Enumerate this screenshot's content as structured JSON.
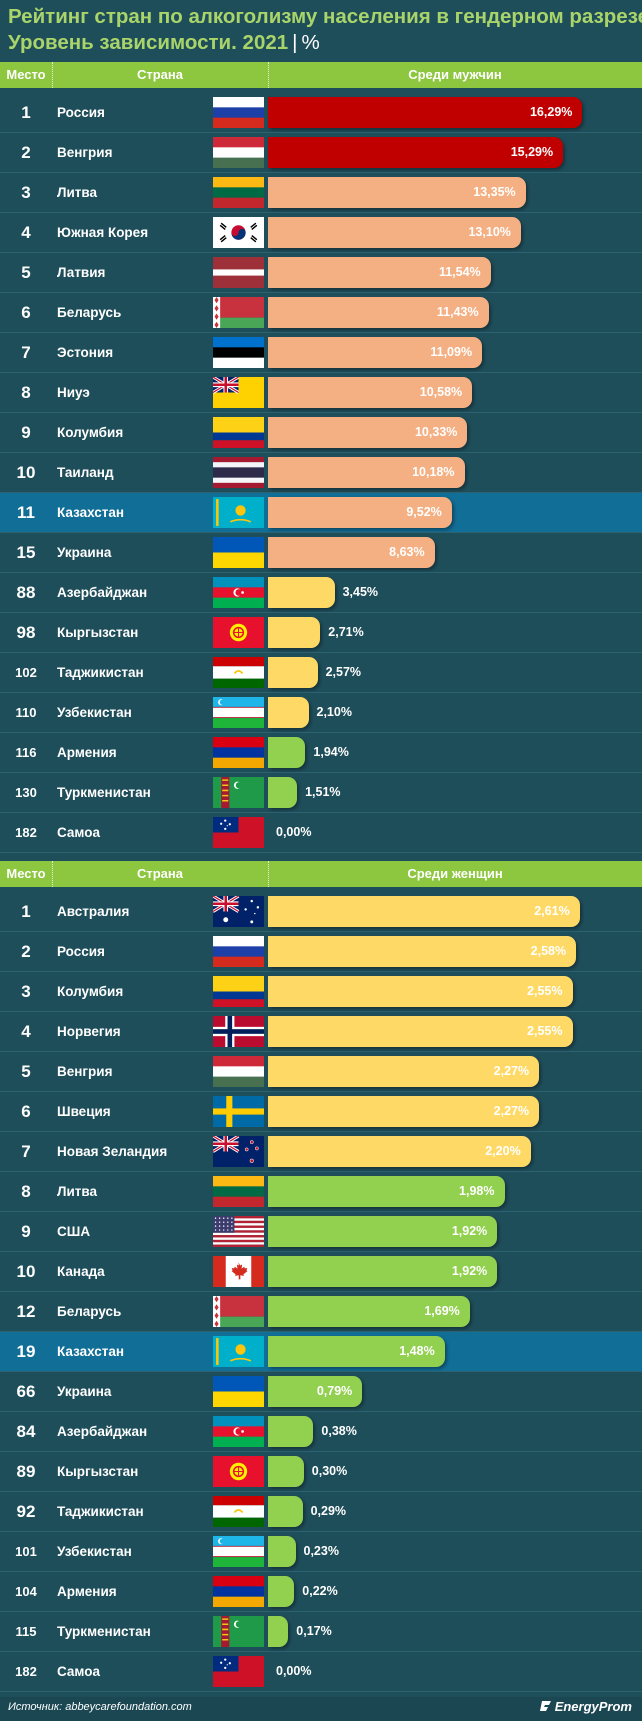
{
  "title": {
    "line1": "Рейтинг стран по алкоголизму населения в гендерном разрезе.",
    "line2": "Уровень зависимости. 2021",
    "separator": "|",
    "unit": "%"
  },
  "colors": {
    "red": "#c00000",
    "salmon": "#f4b083",
    "yellow": "#ffd966",
    "green": "#92d050",
    "header": "#8dc63f",
    "highlight_row": "#116e96",
    "background": "#1f4e5b"
  },
  "chart_data": [
    {
      "type": "bar",
      "orientation": "horizontal",
      "header": {
        "place": "Место",
        "country": "Страна",
        "value": "Среди мужчин"
      },
      "xlim": [
        0,
        17.2
      ],
      "rows": [
        {
          "place": "1",
          "country": "Россия",
          "flag": "flag-russia",
          "value": 16.29,
          "label": "16,29%",
          "color": "red",
          "highlight": false
        },
        {
          "place": "2",
          "country": "Венгрия",
          "flag": "flag-hungary",
          "value": 15.29,
          "label": "15,29%",
          "color": "red",
          "highlight": false
        },
        {
          "place": "3",
          "country": "Литва",
          "flag": "flag-lithuania",
          "value": 13.35,
          "label": "13,35%",
          "color": "salmon",
          "highlight": false
        },
        {
          "place": "4",
          "country": "Южная Корея",
          "flag": "flag-south-korea",
          "value": 13.1,
          "label": "13,10%",
          "color": "salmon",
          "highlight": false
        },
        {
          "place": "5",
          "country": "Латвия",
          "flag": "flag-latvia",
          "value": 11.54,
          "label": "11,54%",
          "color": "salmon",
          "highlight": false
        },
        {
          "place": "6",
          "country": "Беларусь",
          "flag": "flag-belarus",
          "value": 11.43,
          "label": "11,43%",
          "color": "salmon",
          "highlight": false
        },
        {
          "place": "7",
          "country": "Эстония",
          "flag": "flag-estonia",
          "value": 11.09,
          "label": "11,09%",
          "color": "salmon",
          "highlight": false
        },
        {
          "place": "8",
          "country": "Ниуэ",
          "flag": "flag-niue",
          "value": 10.58,
          "label": "10,58%",
          "color": "salmon",
          "highlight": false
        },
        {
          "place": "9",
          "country": "Колумбия",
          "flag": "flag-colombia",
          "value": 10.33,
          "label": "10,33%",
          "color": "salmon",
          "highlight": false
        },
        {
          "place": "10",
          "country": "Таиланд",
          "flag": "flag-thailand",
          "value": 10.18,
          "label": "10,18%",
          "color": "salmon",
          "highlight": false
        },
        {
          "place": "11",
          "country": "Казахстан",
          "flag": "flag-kazakhstan",
          "value": 9.52,
          "label": "9,52%",
          "color": "salmon",
          "highlight": true
        },
        {
          "place": "15",
          "country": "Украина",
          "flag": "flag-ukraine",
          "value": 8.63,
          "label": "8,63%",
          "color": "salmon",
          "highlight": false
        },
        {
          "place": "88",
          "country": "Азербайджан",
          "flag": "flag-azerbaijan",
          "value": 3.45,
          "label": "3,45%",
          "color": "yellow",
          "highlight": false
        },
        {
          "place": "98",
          "country": "Кыргызстан",
          "flag": "flag-kyrgyzstan",
          "value": 2.71,
          "label": "2,71%",
          "color": "yellow",
          "highlight": false
        },
        {
          "place": "102",
          "country": "Таджикистан",
          "flag": "flag-tajikistan",
          "value": 2.57,
          "label": "2,57%",
          "color": "yellow",
          "highlight": false
        },
        {
          "place": "110",
          "country": "Узбекистан",
          "flag": "flag-uzbekistan",
          "value": 2.1,
          "label": "2,10%",
          "color": "yellow",
          "highlight": false
        },
        {
          "place": "116",
          "country": "Армения",
          "flag": "flag-armenia",
          "value": 1.94,
          "label": "1,94%",
          "color": "green",
          "highlight": false
        },
        {
          "place": "130",
          "country": "Туркменистан",
          "flag": "flag-turkmenistan",
          "value": 1.51,
          "label": "1,51%",
          "color": "green",
          "highlight": false
        },
        {
          "place": "182",
          "country": "Самоа",
          "flag": "flag-samoa",
          "value": 0.0,
          "label": "0,00%",
          "color": "green",
          "highlight": false
        }
      ]
    },
    {
      "type": "bar",
      "orientation": "horizontal",
      "header": {
        "place": "Место",
        "country": "Страна",
        "value": "Среди женщин"
      },
      "xlim": [
        0,
        2.78
      ],
      "rows": [
        {
          "place": "1",
          "country": "Австралия",
          "flag": "flag-australia",
          "value": 2.61,
          "label": "2,61%",
          "color": "yellow",
          "highlight": false
        },
        {
          "place": "2",
          "country": "Россия",
          "flag": "flag-russia",
          "value": 2.58,
          "label": "2,58%",
          "color": "yellow",
          "highlight": false
        },
        {
          "place": "3",
          "country": "Колумбия",
          "flag": "flag-colombia",
          "value": 2.55,
          "label": "2,55%",
          "color": "yellow",
          "highlight": false
        },
        {
          "place": "4",
          "country": "Норвегия",
          "flag": "flag-norway",
          "value": 2.55,
          "label": "2,55%",
          "color": "yellow",
          "highlight": false
        },
        {
          "place": "5",
          "country": "Венгрия",
          "flag": "flag-hungary",
          "value": 2.27,
          "label": "2,27%",
          "color": "yellow",
          "highlight": false
        },
        {
          "place": "6",
          "country": "Швеция",
          "flag": "flag-sweden",
          "value": 2.27,
          "label": "2,27%",
          "color": "yellow",
          "highlight": false
        },
        {
          "place": "7",
          "country": "Новая Зеландия",
          "flag": "flag-new-zealand",
          "value": 2.2,
          "label": "2,20%",
          "color": "yellow",
          "highlight": false
        },
        {
          "place": "8",
          "country": "Литва",
          "flag": "flag-lithuania",
          "value": 1.98,
          "label": "1,98%",
          "color": "green",
          "highlight": false
        },
        {
          "place": "9",
          "country": "США",
          "flag": "flag-usa",
          "value": 1.92,
          "label": "1,92%",
          "color": "green",
          "highlight": false
        },
        {
          "place": "10",
          "country": "Канада",
          "flag": "flag-canada",
          "value": 1.92,
          "label": "1,92%",
          "color": "green",
          "highlight": false
        },
        {
          "place": "12",
          "country": "Беларусь",
          "flag": "flag-belarus",
          "value": 1.69,
          "label": "1,69%",
          "color": "green",
          "highlight": false
        },
        {
          "place": "19",
          "country": "Казахстан",
          "flag": "flag-kazakhstan",
          "value": 1.48,
          "label": "1,48%",
          "color": "green",
          "highlight": true
        },
        {
          "place": "66",
          "country": "Украина",
          "flag": "flag-ukraine",
          "value": 0.79,
          "label": "0,79%",
          "color": "green",
          "highlight": false
        },
        {
          "place": "84",
          "country": "Азербайджан",
          "flag": "flag-azerbaijan",
          "value": 0.38,
          "label": "0,38%",
          "color": "green",
          "highlight": false
        },
        {
          "place": "89",
          "country": "Кыргызстан",
          "flag": "flag-kyrgyzstan",
          "value": 0.3,
          "label": "0,30%",
          "color": "green",
          "highlight": false
        },
        {
          "place": "92",
          "country": "Таджикистан",
          "flag": "flag-tajikistan",
          "value": 0.29,
          "label": "0,29%",
          "color": "green",
          "highlight": false
        },
        {
          "place": "101",
          "country": "Узбекистан",
          "flag": "flag-uzbekistan",
          "value": 0.23,
          "label": "0,23%",
          "color": "green",
          "highlight": false
        },
        {
          "place": "104",
          "country": "Армения",
          "flag": "flag-armenia",
          "value": 0.22,
          "label": "0,22%",
          "color": "green",
          "highlight": false
        },
        {
          "place": "115",
          "country": "Туркменистан",
          "flag": "flag-turkmenistan",
          "value": 0.17,
          "label": "0,17%",
          "color": "green",
          "highlight": false
        },
        {
          "place": "182",
          "country": "Самоа",
          "flag": "flag-samoa",
          "value": 0.0,
          "label": "0,00%",
          "color": "green",
          "highlight": false
        }
      ]
    }
  ],
  "footer": {
    "source": "Источник: abbeycarefoundation.com",
    "brand": "EnergyProm",
    "brand_icon": "energyprom-logo-icon"
  }
}
